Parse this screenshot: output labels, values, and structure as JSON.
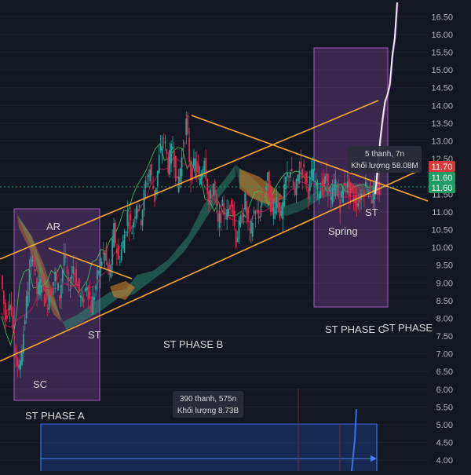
{
  "chart_data": {
    "type": "line",
    "y_axis": {
      "position": "right",
      "ticks": [
        "16.50",
        "16.00",
        "15.50",
        "15.00",
        "14.50",
        "14.00",
        "13.50",
        "13.00",
        "12.50",
        "12.00",
        "11.50",
        "11.00",
        "10.50",
        "10.00",
        "9.50",
        "9.00",
        "8.50",
        "8.00",
        "7.50",
        "7.00",
        "6.50",
        "6.00",
        "5.50",
        "5.00",
        "4.50",
        "4.00"
      ],
      "ylim": [
        3.85,
        16.75
      ]
    },
    "price_badges": [
      {
        "value": "11.70",
        "color": "#d43a3a"
      },
      {
        "value": "11.60",
        "color": "#1f9b63"
      },
      {
        "value": "11.60",
        "color": "#1f9b63"
      }
    ],
    "colors": {
      "background": "#131722",
      "candle_up": "#26a69a",
      "candle_down": "#e0284f",
      "trendline": "#f7a72c",
      "wyckoff_box": "#8e4ba8",
      "cloud": "#2f9e7d",
      "measure_box": "#1e4aa8",
      "breakout_line": "#ffffff"
    },
    "annotations": {
      "ar": "AR",
      "sc": "SC",
      "st_a": "ST",
      "phase_a": "ST PHASE A",
      "phase_b": "ST PHASE B",
      "phase_c": "ST PHASE C",
      "phase_d": "ST PHASE",
      "spring": "Spring",
      "st_c": "ST"
    },
    "tooltips": [
      {
        "line1": "5 thanh, 7n",
        "line2": "Khối lượng 58.08M"
      },
      {
        "line1": "390 thanh, 575n",
        "line2": "Khối lượng 8.73B"
      }
    ],
    "series": [
      {
        "role": "price",
        "values": [
          9.2,
          8.0,
          8.6,
          7.2,
          6.5,
          7.6,
          8.9,
          9.9,
          8.7,
          9.1,
          8.3,
          8.8,
          9.2,
          8.6,
          9.8,
          8.8,
          9.5,
          8.9,
          8.4,
          9.0,
          8.3,
          8.9,
          9.6,
          9.8,
          9.1,
          10.5,
          9.6,
          10.1,
          10.9,
          10.5,
          11.3,
          10.8,
          11.8,
          12.2,
          11.4,
          12.5,
          13.1,
          12.3,
          12.9,
          11.7,
          12.5,
          13.5,
          12.0,
          12.4,
          11.8,
          12.6,
          11.2,
          11.8,
          10.6,
          11.1,
          10.9,
          11.4,
          10.2,
          10.7,
          11.3,
          10.3,
          11.0,
          10.8,
          11.5,
          11.9,
          10.9,
          11.4,
          10.8,
          11.9,
          12.2,
          11.4,
          12.3,
          12.1,
          11.6,
          12.2,
          11.6,
          11.7,
          11.9,
          11.3,
          11.8,
          11.2,
          11.9,
          11.6,
          11.4,
          11.3,
          11.6,
          11.8,
          11.4,
          11.7,
          11.5
        ]
      },
      {
        "role": "breakout",
        "values": [
          11.5,
          12.2,
          13.0,
          13.6,
          14.1,
          14.3,
          14.6,
          15.4,
          15.9,
          16.9
        ]
      }
    ]
  }
}
